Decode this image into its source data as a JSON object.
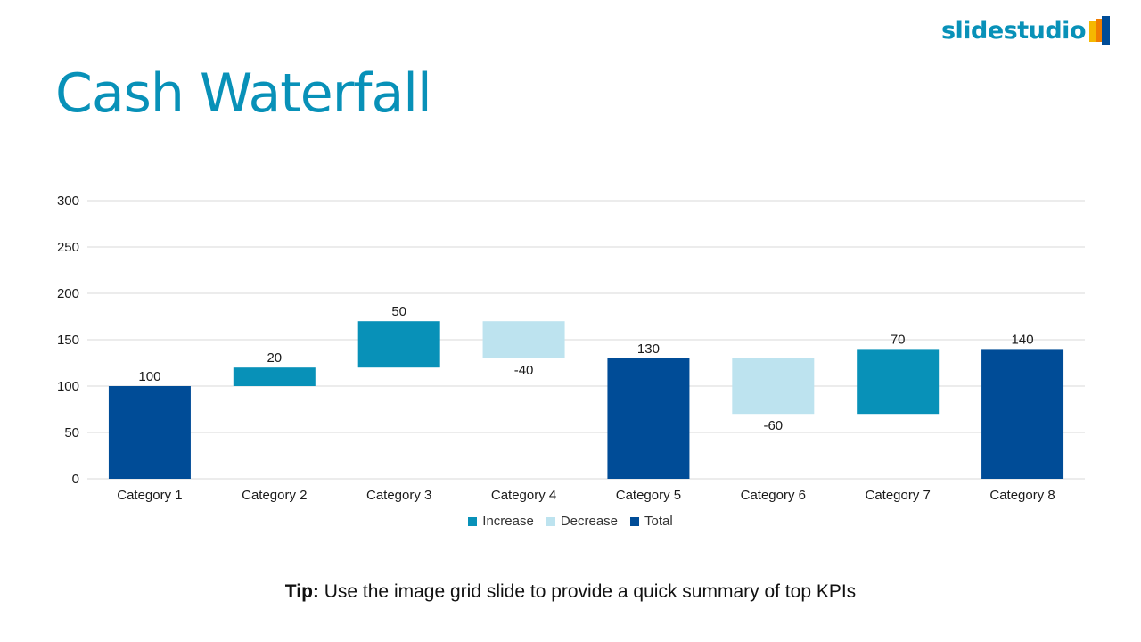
{
  "brand": {
    "logo_text": "slidestudio",
    "logo_color": "#0891b8"
  },
  "slide": {
    "title": "Cash Waterfall",
    "title_color": "#0891b8"
  },
  "tip": {
    "label": "Tip:",
    "text": " Use the image grid slide to provide a quick summary of top KPIs"
  },
  "colors": {
    "increase": "#0891b8",
    "decrease": "#bde3ef",
    "total": "#004c97",
    "gridline": "#d9d9d9"
  },
  "chart_data": {
    "type": "bar",
    "subtype": "waterfall",
    "categories": [
      "Category 1",
      "Category 2",
      "Category 3",
      "Category 4",
      "Category 5",
      "Category 6",
      "Category 7",
      "Category 8"
    ],
    "values": [
      100,
      20,
      50,
      -40,
      130,
      -60,
      70,
      140
    ],
    "kinds": [
      "total",
      "increase",
      "increase",
      "decrease",
      "total",
      "decrease",
      "increase",
      "total"
    ],
    "data_labels": [
      "100",
      "20",
      "50",
      "-40",
      "130",
      "-60",
      "70",
      "140"
    ],
    "ylim": [
      0,
      300
    ],
    "yticks": [
      0,
      50,
      100,
      150,
      200,
      250,
      300
    ],
    "grid": true,
    "legend": {
      "position": "bottom",
      "entries": [
        {
          "key": "increase",
          "label": "Increase"
        },
        {
          "key": "decrease",
          "label": "Decrease"
        },
        {
          "key": "total",
          "label": "Total"
        }
      ]
    }
  }
}
